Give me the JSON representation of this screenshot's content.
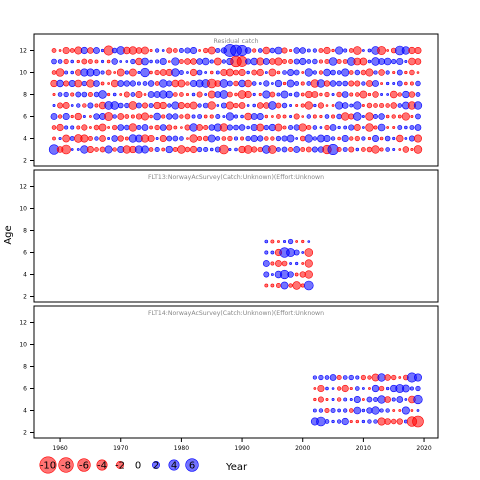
{
  "chart_data": [
    {
      "type": "scatter",
      "title": "Residual catch",
      "x_range": [
        1959,
        2019
      ],
      "age_range": [
        3,
        12
      ],
      "ylim": [
        1.5,
        13.5
      ],
      "grid": false,
      "pattern_seed": 11,
      "highlight_points": [
        {
          "x": 1959,
          "y": 3,
          "v": 3.5
        },
        {
          "x": 1961,
          "y": 3,
          "v": -3.0
        },
        {
          "x": 1968,
          "y": 12,
          "v": -3.2
        },
        {
          "x": 1988,
          "y": 12,
          "v": 5.5
        },
        {
          "x": 1989,
          "y": 12,
          "v": 4.5
        },
        {
          "x": 1990,
          "y": 12,
          "v": 4.0
        },
        {
          "x": 1989,
          "y": 11,
          "v": -4.2
        },
        {
          "x": 1990,
          "y": 11,
          "v": -3.8
        },
        {
          "x": 1985,
          "y": 9,
          "v": -3.0
        },
        {
          "x": 2005,
          "y": 3,
          "v": 4.0
        },
        {
          "x": 2004,
          "y": 3,
          "v": -2.8
        },
        {
          "x": 1987,
          "y": 3,
          "v": -3.0
        },
        {
          "x": 1968,
          "y": 6,
          "v": -2.5
        },
        {
          "x": 2013,
          "y": 12,
          "v": -2.5
        },
        {
          "x": 2016,
          "y": 12,
          "v": 3.0
        },
        {
          "x": 1974,
          "y": 10,
          "v": 2.8
        }
      ]
    },
    {
      "type": "scatter",
      "title": "FLT13:NorwayAcSurvey(Catch:Unknown)(Effort:Unknown",
      "x_range": [
        1994,
        2001
      ],
      "age_range": [
        3,
        7
      ],
      "ylim": [
        1.5,
        13.5
      ],
      "grid": false,
      "pattern_seed": 23,
      "highlight_points": [
        {
          "x": 1997,
          "y": 6,
          "v": 3.5
        },
        {
          "x": 1998,
          "y": 6,
          "v": 2.5
        },
        {
          "x": 2001,
          "y": 3,
          "v": 3.0
        },
        {
          "x": 2001,
          "y": 4,
          "v": -2.2
        },
        {
          "x": 1997,
          "y": 4,
          "v": 2.8
        }
      ]
    },
    {
      "type": "scatter",
      "title": "FLT14:NorwayAcSurvey(Catch:Unknown)(Effort:Unknown",
      "x_range": [
        2002,
        2019
      ],
      "age_range": [
        3,
        7
      ],
      "ylim": [
        1.5,
        13.5
      ],
      "grid": false,
      "pattern_seed": 37,
      "highlight_points": [
        {
          "x": 2019,
          "y": 3,
          "v": -4.5
        },
        {
          "x": 2018,
          "y": 3,
          "v": -3.5
        },
        {
          "x": 2018,
          "y": 7,
          "v": 3.2
        },
        {
          "x": 2003,
          "y": 3,
          "v": 3.0
        },
        {
          "x": 2002,
          "y": 3,
          "v": 2.0
        },
        {
          "x": 2016,
          "y": 6,
          "v": 2.5
        },
        {
          "x": 2019,
          "y": 5,
          "v": 2.8
        }
      ]
    }
  ],
  "axes": {
    "ylabel": "Age",
    "y_ticks": [
      2,
      4,
      6,
      8,
      10,
      12
    ],
    "x_ticks": [
      1960,
      1970,
      1980,
      1990,
      2000,
      2010,
      2020
    ],
    "xlim": [
      1955.7,
      2022.3
    ]
  },
  "legend": {
    "title": "Year",
    "values": [
      -10,
      -8,
      -6,
      -4,
      -2,
      0,
      2,
      4,
      6
    ],
    "placement": "bottom-left"
  },
  "colors": {
    "negative": "#ff0000",
    "positive": "#0000ff",
    "axis": "#000000",
    "title": "#888888"
  }
}
